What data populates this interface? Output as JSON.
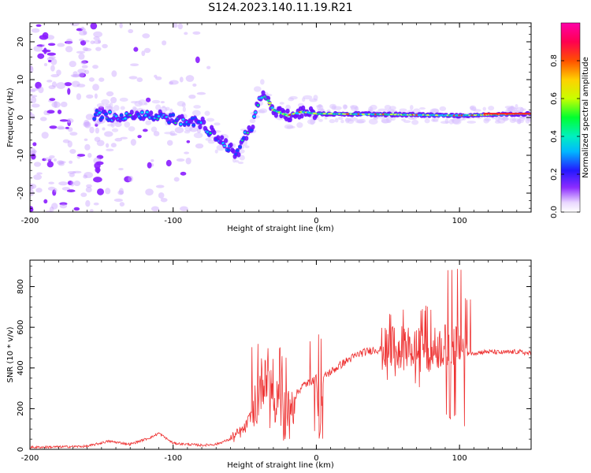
{
  "title": "S124.2023.140.11.19.R21",
  "chart_data": [
    {
      "type": "heatmap",
      "xlabel": "Height of straight line (km)",
      "ylabel": "Frequency (Hz)",
      "xlim": [
        -200,
        150
      ],
      "ylim": [
        -25,
        25
      ],
      "x_ticks": [
        -200,
        -100,
        0,
        100
      ],
      "y_ticks": [
        -20,
        -10,
        0,
        10,
        20
      ],
      "colorbar": {
        "label": "Normalized spectral amplitude",
        "range": [
          0,
          1
        ],
        "ticks": [
          "0.0",
          "0.2",
          "0.4",
          "0.6",
          "0.8"
        ],
        "colormap": "gist_rainbow (white → purple → blue → cyan → green → yellow → orange → red → magenta)"
      },
      "ridge": [
        {
          "x": -150,
          "y": 0.5
        },
        {
          "x": -140,
          "y": 0.0
        },
        {
          "x": -130,
          "y": 1.0
        },
        {
          "x": -120,
          "y": 0.0
        },
        {
          "x": -110,
          "y": 0.5
        },
        {
          "x": -100,
          "y": -0.5
        },
        {
          "x": -90,
          "y": -1.0
        },
        {
          "x": -80,
          "y": -1.5
        },
        {
          "x": -70,
          "y": -5.0
        },
        {
          "x": -62,
          "y": -7.5
        },
        {
          "x": -55,
          "y": -10.0
        },
        {
          "x": -50,
          "y": -5.0
        },
        {
          "x": -45,
          "y": -3.0
        },
        {
          "x": -40,
          "y": 5.0
        },
        {
          "x": -35,
          "y": 5.5
        },
        {
          "x": -30,
          "y": 2.0
        },
        {
          "x": -20,
          "y": 0.5
        },
        {
          "x": -10,
          "y": 1.5
        },
        {
          "x": 0,
          "y": 1.0
        },
        {
          "x": 50,
          "y": 0.8
        },
        {
          "x": 100,
          "y": 0.5
        },
        {
          "x": 150,
          "y": 1.0
        }
      ]
    },
    {
      "type": "line",
      "xlabel": "Height of straight line (km)",
      "ylabel": "SNR (10 * v/v)",
      "xlim": [
        -200,
        150
      ],
      "ylim": [
        0,
        930
      ],
      "x_ticks": [
        -200,
        -100,
        0,
        100
      ],
      "y_ticks": [
        0,
        200,
        400,
        600,
        800
      ],
      "color": "#ee3333",
      "series": [
        {
          "values": [
            [
              -200,
              10
            ],
            [
              -180,
              12
            ],
            [
              -160,
              15
            ],
            [
              -145,
              40
            ],
            [
              -130,
              25
            ],
            [
              -115,
              60
            ],
            [
              -110,
              80
            ],
            [
              -100,
              30
            ],
            [
              -80,
              20
            ],
            [
              -70,
              25
            ],
            [
              -60,
              50
            ],
            [
              -50,
              100
            ],
            [
              -45,
              180
            ],
            [
              -40,
              280
            ],
            [
              -35,
              400
            ],
            [
              -30,
              300
            ],
            [
              -25,
              250
            ],
            [
              -20,
              200
            ],
            [
              -15,
              260
            ],
            [
              -10,
              310
            ],
            [
              -5,
              330
            ],
            [
              0,
              350
            ],
            [
              2,
              50
            ],
            [
              5,
              360
            ],
            [
              10,
              380
            ],
            [
              20,
              430
            ],
            [
              30,
              470
            ],
            [
              40,
              490
            ],
            [
              50,
              490
            ],
            [
              60,
              500
            ],
            [
              70,
              490
            ],
            [
              80,
              490
            ],
            [
              90,
              510
            ],
            [
              95,
              520
            ],
            [
              100,
              500
            ],
            [
              105,
              470
            ],
            [
              110,
              475
            ],
            [
              120,
              480
            ],
            [
              130,
              475
            ],
            [
              140,
              480
            ],
            [
              150,
              470
            ]
          ]
        }
      ],
      "envelope": [
        {
          "x": -40,
          "lo": 120,
          "hi": 540
        },
        {
          "x": -30,
          "lo": 100,
          "hi": 520
        },
        {
          "x": -22,
          "lo": 40,
          "hi": 460
        },
        {
          "x": 0,
          "lo": 50,
          "hi": 570
        },
        {
          "x": 55,
          "lo": 330,
          "hi": 690
        },
        {
          "x": 75,
          "lo": 300,
          "hi": 720
        },
        {
          "x": 95,
          "lo": 150,
          "hi": 920
        },
        {
          "x": 103,
          "lo": 90,
          "hi": 750
        }
      ]
    }
  ]
}
